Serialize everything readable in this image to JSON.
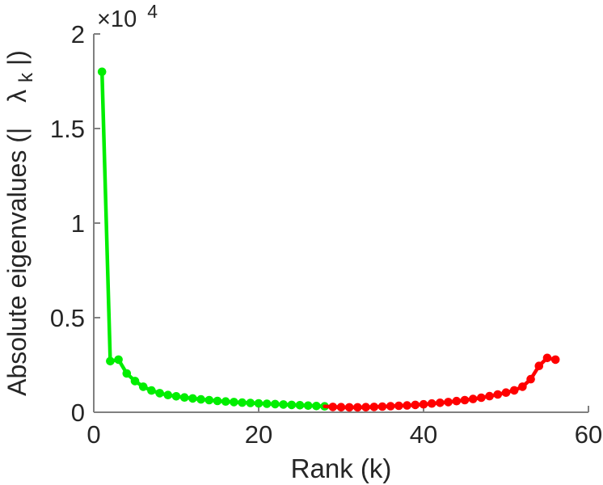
{
  "chart_data": {
    "type": "line",
    "title": "",
    "xlabel": "Rank (k)",
    "ylabel": "Absolute eigenvalues (|  λk|)",
    "ylabel_parts": {
      "prefix": "Absolute eigenvalues (|",
      "lambda": "λ",
      "sub": "k",
      "suffix": "|)"
    },
    "y_exponent": {
      "base": "×10",
      "exp": "4"
    },
    "xlim": [
      0,
      60
    ],
    "ylim": [
      0,
      20000
    ],
    "x_ticks": [
      0,
      20,
      40,
      60
    ],
    "x_tick_labels": [
      "0",
      "20",
      "40",
      "60"
    ],
    "y_ticks": [
      0,
      5000,
      10000,
      15000,
      20000
    ],
    "y_tick_labels": [
      "0",
      "0.5",
      "1",
      "1.5",
      "2"
    ],
    "grid": false,
    "legend": null,
    "colors": {
      "axis": "#808080",
      "text": "#262626",
      "green": "#00ee00",
      "red": "#ff0000",
      "background": "#ffffff"
    },
    "style": {
      "marker_radius": 5.3,
      "line_width": 4.5,
      "axis_width": 2,
      "tick_length": 8
    },
    "series": [
      {
        "name": "leading-eigenvalues-green",
        "color_key": "green",
        "x": [
          1,
          2,
          3,
          4,
          5,
          6,
          7,
          8,
          9,
          10,
          11,
          12,
          13,
          14,
          15,
          16,
          17,
          18,
          19,
          20,
          21,
          22,
          23,
          24,
          25,
          26,
          27,
          28
        ],
        "y": [
          18000,
          2700,
          2780,
          2050,
          1650,
          1350,
          1150,
          1010,
          910,
          840,
          780,
          730,
          680,
          640,
          600,
          570,
          540,
          510,
          490,
          470,
          450,
          430,
          410,
          390,
          370,
          350,
          330,
          310
        ]
      },
      {
        "name": "trailing-eigenvalues-red",
        "color_key": "red",
        "x": [
          29,
          30,
          31,
          32,
          33,
          34,
          35,
          36,
          37,
          38,
          39,
          40,
          41,
          42,
          43,
          44,
          45,
          46,
          47,
          48,
          49,
          50,
          51,
          52,
          53,
          54,
          55,
          56
        ],
        "y": [
          280,
          270,
          260,
          260,
          270,
          280,
          300,
          320,
          340,
          360,
          390,
          420,
          460,
          500,
          540,
          590,
          640,
          700,
          770,
          850,
          940,
          1040,
          1160,
          1350,
          1750,
          2450,
          2870,
          2780
        ]
      }
    ]
  }
}
